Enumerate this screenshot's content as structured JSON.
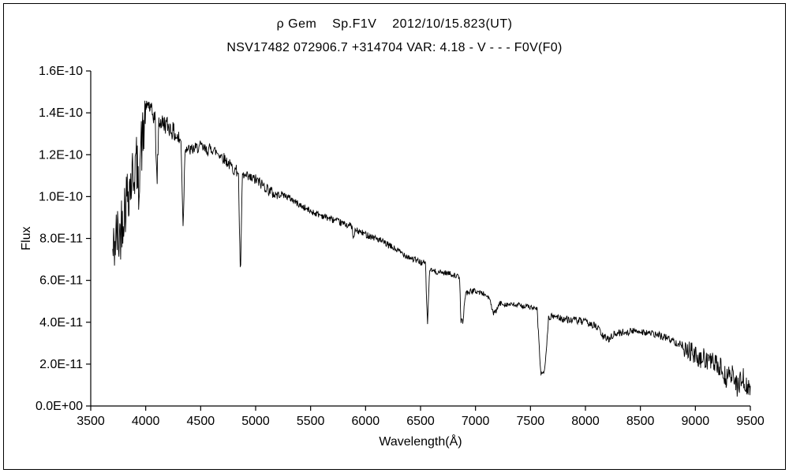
{
  "chart_data": {
    "type": "line",
    "title": "ρ Gem    Sp.F1V    2012/10/15.823(UT)",
    "subtitle": "NSV17482 072906.7 +314704 VAR: 4.18 - V - - - F0V(F0)",
    "xlabel": "Wavelength(Å)",
    "ylabel": "Flux",
    "xlim": [
      3500,
      9500
    ],
    "x_ticks": [
      3500,
      4000,
      4500,
      5000,
      5500,
      6000,
      6500,
      7000,
      7500,
      8000,
      8500,
      9000,
      9500
    ],
    "y_tick_values": [
      0,
      2,
      4,
      6,
      8,
      10,
      12,
      14,
      16
    ],
    "y_tick_labels": [
      "0.0E+00",
      "2.0E-11",
      "4.0E-11",
      "6.0E-11",
      "8.0E-11",
      "1.0E-10",
      "1.2E-10",
      "1.4E-10",
      "1.6E-10"
    ],
    "flux_unit_per_point": "1E-11",
    "line_color": "#000000",
    "background": "#ffffff",
    "grid": false,
    "legend": "none",
    "points": [
      [
        3700,
        7.2
      ],
      [
        3720,
        7.8
      ],
      [
        3740,
        8.2
      ],
      [
        3760,
        8.0
      ],
      [
        3780,
        8.8
      ],
      [
        3800,
        9.4
      ],
      [
        3820,
        9.8
      ],
      [
        3840,
        10.4
      ],
      [
        3860,
        10.6
      ],
      [
        3880,
        11.0
      ],
      [
        3900,
        11.4
      ],
      [
        3920,
        11.6
      ],
      [
        3933,
        10.0
      ],
      [
        3946,
        12.0
      ],
      [
        3960,
        12.4
      ],
      [
        3975,
        12.8
      ],
      [
        4000,
        14.0
      ],
      [
        4020,
        14.5
      ],
      [
        4045,
        14.1
      ],
      [
        4065,
        13.9
      ],
      [
        4085,
        13.8
      ],
      [
        4102,
        10.6
      ],
      [
        4120,
        13.6
      ],
      [
        4160,
        13.5
      ],
      [
        4200,
        13.4
      ],
      [
        4250,
        13.1
      ],
      [
        4290,
        12.8
      ],
      [
        4322,
        12.6
      ],
      [
        4340,
        8.5
      ],
      [
        4358,
        12.4
      ],
      [
        4400,
        12.2
      ],
      [
        4450,
        12.3
      ],
      [
        4500,
        12.4
      ],
      [
        4550,
        12.2
      ],
      [
        4600,
        12.3
      ],
      [
        4650,
        12.1
      ],
      [
        4700,
        11.9
      ],
      [
        4750,
        11.6
      ],
      [
        4800,
        11.3
      ],
      [
        4843,
        11.2
      ],
      [
        4861,
        6.1
      ],
      [
        4880,
        11.0
      ],
      [
        4930,
        10.9
      ],
      [
        5000,
        10.8
      ],
      [
        5080,
        10.5
      ],
      [
        5170,
        10.1
      ],
      [
        5250,
        10.1
      ],
      [
        5320,
        9.9
      ],
      [
        5400,
        9.6
      ],
      [
        5500,
        9.3
      ],
      [
        5600,
        9.1
      ],
      [
        5700,
        8.9
      ],
      [
        5800,
        8.7
      ],
      [
        5875,
        8.6
      ],
      [
        5890,
        7.9
      ],
      [
        5905,
        8.4
      ],
      [
        6000,
        8.2
      ],
      [
        6100,
        8.0
      ],
      [
        6200,
        7.7
      ],
      [
        6300,
        7.4
      ],
      [
        6400,
        7.1
      ],
      [
        6480,
        6.9
      ],
      [
        6545,
        6.8
      ],
      [
        6563,
        3.8
      ],
      [
        6582,
        6.5
      ],
      [
        6650,
        6.4
      ],
      [
        6750,
        6.35
      ],
      [
        6830,
        6.2
      ],
      [
        6855,
        6.1
      ],
      [
        6867,
        4.1
      ],
      [
        6884,
        4.0
      ],
      [
        6910,
        5.4
      ],
      [
        6980,
        5.5
      ],
      [
        7060,
        5.4
      ],
      [
        7120,
        5.2
      ],
      [
        7165,
        4.4
      ],
      [
        7185,
        4.5
      ],
      [
        7220,
        4.9
      ],
      [
        7300,
        4.85
      ],
      [
        7400,
        4.8
      ],
      [
        7480,
        4.75
      ],
      [
        7560,
        4.6
      ],
      [
        7594,
        1.5
      ],
      [
        7630,
        1.7
      ],
      [
        7665,
        4.2
      ],
      [
        7720,
        4.3
      ],
      [
        7800,
        4.15
      ],
      [
        7900,
        4.1
      ],
      [
        8000,
        4.0
      ],
      [
        8060,
        3.9
      ],
      [
        8120,
        3.7
      ],
      [
        8160,
        3.3
      ],
      [
        8210,
        3.2
      ],
      [
        8250,
        3.4
      ],
      [
        8320,
        3.5
      ],
      [
        8400,
        3.55
      ],
      [
        8480,
        3.6
      ],
      [
        8560,
        3.5
      ],
      [
        8640,
        3.4
      ],
      [
        8720,
        3.3
      ],
      [
        8800,
        3.1
      ],
      [
        8880,
        2.9
      ],
      [
        8950,
        2.6
      ],
      [
        9000,
        2.4
      ],
      [
        9040,
        2.1
      ],
      [
        9080,
        2.3
      ],
      [
        9130,
        2.15
      ],
      [
        9180,
        2.0
      ],
      [
        9230,
        1.8
      ],
      [
        9280,
        1.3
      ],
      [
        9330,
        1.6
      ],
      [
        9380,
        0.9
      ],
      [
        9430,
        1.4
      ],
      [
        9470,
        0.8
      ],
      [
        9500,
        0.9
      ]
    ],
    "noise_regions": [
      {
        "range": [
          3700,
          3995
        ],
        "amp": 1.5
      },
      {
        "range": [
          3995,
          4320
        ],
        "amp": 0.45
      },
      {
        "range": [
          4320,
          5200
        ],
        "amp": 0.28
      },
      {
        "range": [
          5200,
          6540
        ],
        "amp": 0.16
      },
      {
        "range": [
          6540,
          7580
        ],
        "amp": 0.13
      },
      {
        "range": [
          7660,
          8900
        ],
        "amp": 0.18
      },
      {
        "range": [
          8900,
          9500
        ],
        "amp": 0.5
      }
    ]
  }
}
